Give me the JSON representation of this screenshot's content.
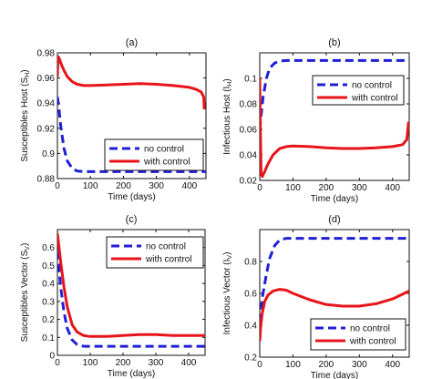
{
  "chart_data": [
    {
      "type": "line",
      "panel": "(a)",
      "xlabel": "Time (days)",
      "ylabel": "Susceptibles Host (S",
      "ylabel_sub": "H",
      "xlim": [
        0,
        450
      ],
      "ylim": [
        0.88,
        0.98
      ],
      "xticks": [
        0,
        100,
        200,
        300,
        400
      ],
      "yticks": [
        0.88,
        0.9,
        0.92,
        0.94,
        0.96,
        0.98
      ],
      "ytick_labels": [
        "0.88",
        "0.9",
        "0.92",
        "0.94",
        "0.96",
        "0.98"
      ],
      "legend_position": "lower-right",
      "series": [
        {
          "name": "no control",
          "color": "#1f1fd6",
          "style": "dashed",
          "x": [
            0,
            5,
            10,
            20,
            30,
            45,
            60,
            80,
            100,
            150,
            200,
            300,
            400,
            450
          ],
          "y": [
            0.945,
            0.935,
            0.922,
            0.904,
            0.894,
            0.888,
            0.886,
            0.8855,
            0.8855,
            0.8855,
            0.8855,
            0.8855,
            0.8855,
            0.8855
          ]
        },
        {
          "name": "with control",
          "color": "#e8141b",
          "style": "solid",
          "x": [
            0,
            2,
            5,
            10,
            20,
            30,
            45,
            60,
            80,
            100,
            150,
            200,
            250,
            300,
            350,
            400,
            420,
            435,
            443,
            445
          ],
          "y": [
            0.961,
            0.977,
            0.976,
            0.972,
            0.966,
            0.961,
            0.957,
            0.955,
            0.954,
            0.954,
            0.9545,
            0.955,
            0.9555,
            0.955,
            0.954,
            0.9525,
            0.951,
            0.949,
            0.945,
            0.935
          ]
        }
      ]
    },
    {
      "type": "line",
      "panel": "(b)",
      "xlabel": "Time (days)",
      "ylabel": "Infectious Host (I",
      "ylabel_sub": "H",
      "xlim": [
        0,
        450
      ],
      "ylim": [
        0.02,
        0.12
      ],
      "xticks": [
        0,
        100,
        200,
        300,
        400
      ],
      "yticks": [
        0.02,
        0.04,
        0.06,
        0.08,
        0.1
      ],
      "ytick_labels": [
        "0.02",
        "0.04",
        "0.06",
        "0.08",
        "0.1"
      ],
      "legend_position": "middle-right",
      "series": [
        {
          "name": "no control",
          "color": "#1f1fd6",
          "style": "dashed",
          "x": [
            0,
            5,
            10,
            20,
            30,
            45,
            60,
            80,
            100,
            200,
            300,
            400,
            450
          ],
          "y": [
            0.06,
            0.073,
            0.085,
            0.1,
            0.108,
            0.112,
            0.1135,
            0.114,
            0.114,
            0.114,
            0.114,
            0.114,
            0.114
          ]
        },
        {
          "name": "with control",
          "color": "#e8141b",
          "style": "solid",
          "x": [
            0,
            2,
            4,
            8,
            15,
            25,
            40,
            60,
            80,
            100,
            150,
            200,
            250,
            300,
            350,
            400,
            430,
            443,
            448
          ],
          "y": [
            0.1,
            0.06,
            0.025,
            0.023,
            0.027,
            0.033,
            0.04,
            0.045,
            0.0465,
            0.047,
            0.0465,
            0.0455,
            0.045,
            0.045,
            0.0455,
            0.0465,
            0.048,
            0.052,
            0.066
          ]
        }
      ]
    },
    {
      "type": "line",
      "panel": "(c)",
      "xlabel": "Time (days)",
      "ylabel": "Susceptibles Vector (S",
      "ylabel_sub": "V",
      "xlim": [
        0,
        450
      ],
      "ylim": [
        0,
        0.7
      ],
      "xticks": [
        0,
        100,
        200,
        300,
        400
      ],
      "yticks": [
        0,
        0.1,
        0.2,
        0.3,
        0.4,
        0.5,
        0.6
      ],
      "ytick_labels": [
        "0",
        "0.1",
        "0.2",
        "0.3",
        "0.4",
        "0.5",
        "0.6"
      ],
      "legend_position": "top-right",
      "series": [
        {
          "name": "no control",
          "color": "#1f1fd6",
          "style": "dashed",
          "x": [
            0,
            5,
            10,
            20,
            30,
            45,
            60,
            80,
            100,
            200,
            300,
            400,
            450
          ],
          "y": [
            0.58,
            0.48,
            0.38,
            0.24,
            0.15,
            0.085,
            0.06,
            0.05,
            0.05,
            0.05,
            0.05,
            0.05,
            0.05
          ]
        },
        {
          "name": "with control",
          "color": "#e8141b",
          "style": "solid",
          "x": [
            0,
            5,
            10,
            20,
            30,
            45,
            60,
            80,
            100,
            150,
            200,
            250,
            300,
            350,
            400,
            450
          ],
          "y": [
            0.68,
            0.6,
            0.52,
            0.38,
            0.27,
            0.17,
            0.13,
            0.11,
            0.105,
            0.105,
            0.11,
            0.115,
            0.115,
            0.11,
            0.11,
            0.11
          ]
        }
      ]
    },
    {
      "type": "line",
      "panel": "(d)",
      "xlabel": "Time (days)",
      "ylabel": "Infectious Vector (I",
      "ylabel_sub": "V",
      "xlim": [
        0,
        450
      ],
      "ylim": [
        0.2,
        1.0
      ],
      "xticks": [
        0,
        100,
        200,
        300,
        400
      ],
      "yticks": [
        0.2,
        0.4,
        0.6,
        0.8
      ],
      "ytick_labels": [
        "0.2",
        "0.4",
        "0.6",
        "0.8"
      ],
      "legend_position": "bottom-right",
      "series": [
        {
          "name": "no control",
          "color": "#1f1fd6",
          "style": "dashed",
          "x": [
            0,
            5,
            10,
            20,
            30,
            45,
            60,
            80,
            100,
            200,
            300,
            400,
            450
          ],
          "y": [
            0.42,
            0.52,
            0.6,
            0.72,
            0.82,
            0.9,
            0.935,
            0.945,
            0.945,
            0.945,
            0.945,
            0.945,
            0.945
          ]
        },
        {
          "name": "with control",
          "color": "#e8141b",
          "style": "solid",
          "x": [
            0,
            3,
            8,
            15,
            25,
            40,
            60,
            80,
            100,
            150,
            200,
            250,
            300,
            350,
            400,
            450
          ],
          "y": [
            0.3,
            0.4,
            0.48,
            0.55,
            0.59,
            0.615,
            0.625,
            0.62,
            0.6,
            0.56,
            0.53,
            0.52,
            0.52,
            0.535,
            0.565,
            0.615
          ]
        }
      ]
    }
  ]
}
